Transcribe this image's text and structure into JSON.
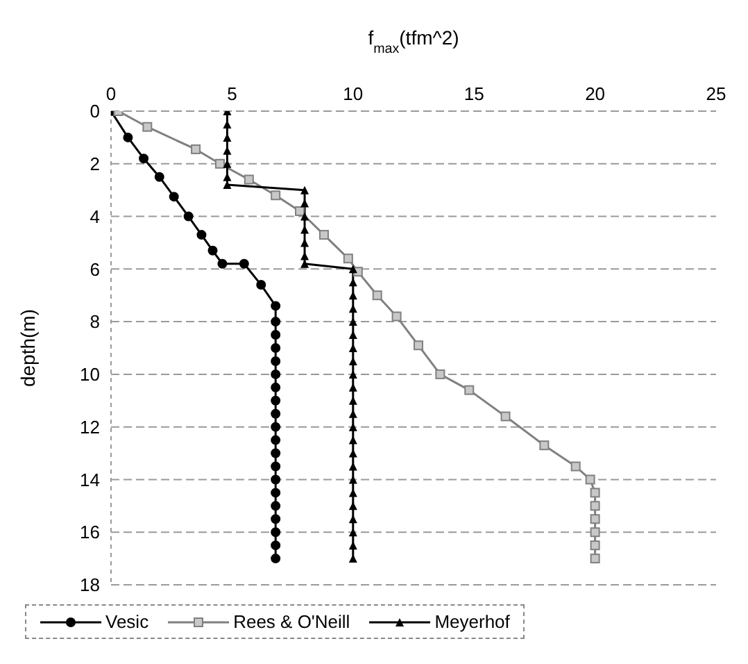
{
  "chart_data": {
    "type": "line",
    "xlabel": "f$_{max}$(tfm^2)",
    "ylabel": "depth(m)",
    "xlim": [
      0,
      25
    ],
    "xticks": [
      0,
      5,
      10,
      15,
      20,
      25
    ],
    "ylim": [
      18,
      0
    ],
    "yticks": [
      0,
      2,
      4,
      6,
      8,
      10,
      12,
      14,
      16,
      18
    ],
    "grid": "y",
    "legend": "bottom",
    "line_style": "solid",
    "series": [
      {
        "name": "Vesic",
        "color": "#000000",
        "marker": "circle",
        "x": [
          0,
          0.7,
          1.35,
          2,
          2.6,
          3.2,
          3.74,
          4.2,
          4.6,
          5.5,
          6.2,
          6.8,
          6.8,
          6.8,
          6.8,
          6.8,
          6.8,
          6.8,
          6.8,
          6.8,
          6.8,
          6.8,
          6.8,
          6.8,
          6.8,
          6.8,
          6.8,
          6.8,
          6.8,
          6.8,
          6.8
        ],
        "values": [
          0,
          1,
          1.8,
          2.5,
          3.25,
          4,
          4.7,
          5.3,
          5.8,
          5.8,
          6.6,
          7.4,
          8,
          8.5,
          9,
          9.5,
          10,
          10.5,
          11,
          11.5,
          12,
          12.5,
          13,
          13.5,
          14,
          14.5,
          15,
          15.5,
          16,
          16.5,
          17
        ]
      },
      {
        "name": "Rees & O'Neill",
        "color": "#808080",
        "marker": "square",
        "x": [
          0.3,
          1.5,
          3.5,
          4.5,
          5.7,
          6.8,
          7.8,
          8.8,
          9.8,
          10.2,
          11,
          11.8,
          12.7,
          13.6,
          14.8,
          16.3,
          17.9,
          19.2,
          19.8,
          20,
          20,
          20,
          20,
          20,
          20
        ],
        "values": [
          0,
          0.6,
          1.45,
          2,
          2.6,
          3.2,
          3.8,
          4.7,
          5.6,
          6.1,
          7,
          7.8,
          8.9,
          10,
          10.6,
          11.6,
          12.7,
          13.5,
          14,
          14.5,
          15,
          15.5,
          16,
          16.5,
          17
        ]
      },
      {
        "name": "Meyerhof",
        "color": "#000000",
        "marker": "triangle",
        "x": [
          4.8,
          4.8,
          4.8,
          4.8,
          4.8,
          4.8,
          4.8,
          8,
          8,
          8,
          8,
          8,
          8,
          8,
          10,
          10,
          10,
          10,
          10,
          10,
          10,
          10,
          10,
          10,
          10,
          10,
          10,
          10,
          10,
          10,
          10,
          10,
          10,
          10,
          10,
          10,
          10
        ],
        "values": [
          0,
          0.5,
          1,
          1.5,
          2,
          2.5,
          2.8,
          3,
          3.5,
          4,
          4.5,
          5,
          5.5,
          5.8,
          6,
          6.5,
          7,
          7.5,
          8,
          8.5,
          9,
          9.5,
          10,
          10.5,
          11,
          11.5,
          12,
          12.5,
          13,
          13.5,
          14,
          14.5,
          15,
          15.5,
          16,
          16.5,
          17
        ]
      }
    ]
  }
}
